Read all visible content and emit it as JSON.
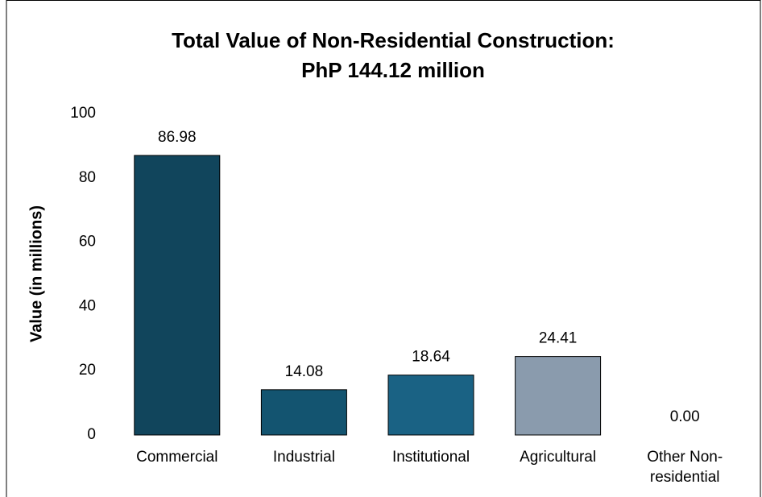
{
  "chart_data": {
    "type": "bar",
    "title": [
      "Total Value of Non-Residential Construction:",
      "PhP 144.12 million"
    ],
    "y_label": "Value (in millions)",
    "categories": [
      "Commercial",
      "Industrial",
      "Institutional",
      "Agricultural",
      "Other Non-residential"
    ],
    "values": [
      86.98,
      14.08,
      18.64,
      24.41,
      0
    ],
    "value_labels": [
      "86.98",
      "14.08",
      "18.64",
      "24.41",
      "0.00"
    ],
    "colors": [
      "#11455c",
      "#135470",
      "#1a6284",
      "#8a9bad",
      "#8a9bad"
    ],
    "ylim": [
      0,
      100
    ],
    "yticks": [
      0,
      20,
      40,
      60,
      80,
      100
    ],
    "grid": false
  }
}
